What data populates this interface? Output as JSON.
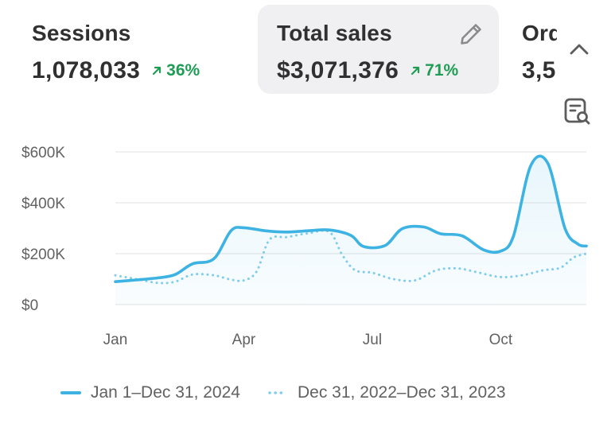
{
  "metrics": [
    {
      "label": "Sessions",
      "value": "1,078,033",
      "delta": "36%"
    },
    {
      "label": "Total sales",
      "value": "$3,071,376",
      "delta": "71%"
    },
    {
      "label": "Orders",
      "value": "3,5"
    }
  ],
  "icons": {
    "edit": "pencil-icon",
    "collapse": "chevron-up-icon",
    "chart_search": "chart-search-icon",
    "delta": "arrow-up-right-icon"
  },
  "colors": {
    "primary_series": "#3db3e3",
    "comparison_series": "#7fcdec",
    "positive_delta": "#1f9d55",
    "card_selected_bg": "#f0eff1",
    "gridline": "#ebebeb",
    "axis_text": "#616161"
  },
  "chart_data": {
    "type": "line",
    "title": "Total sales",
    "xlabel": "",
    "ylabel": "",
    "ylim": [
      0,
      600000
    ],
    "y_ticks": [
      {
        "value": 0,
        "label": "$0"
      },
      {
        "value": 200000,
        "label": "$200K"
      },
      {
        "value": 400000,
        "label": "$400K"
      },
      {
        "value": 600000,
        "label": "$600K"
      }
    ],
    "x_range": [
      0,
      11
    ],
    "x_ticks": [
      {
        "value": 0,
        "label": "Jan"
      },
      {
        "value": 3,
        "label": "Apr"
      },
      {
        "value": 6,
        "label": "Jul"
      },
      {
        "value": 9,
        "label": "Oct"
      }
    ],
    "series": [
      {
        "name": "Jan 1–Dec 31, 2024",
        "style": "solid",
        "points": [
          [
            0,
            90000
          ],
          [
            0.5,
            97000
          ],
          [
            1,
            105000
          ],
          [
            1.4,
            118000
          ],
          [
            1.8,
            160000
          ],
          [
            2.3,
            180000
          ],
          [
            2.7,
            290000
          ],
          [
            3,
            302000
          ],
          [
            3.5,
            290000
          ],
          [
            4,
            285000
          ],
          [
            4.5,
            290000
          ],
          [
            5,
            293000
          ],
          [
            5.5,
            272000
          ],
          [
            5.8,
            228000
          ],
          [
            6.3,
            232000
          ],
          [
            6.7,
            298000
          ],
          [
            7.2,
            305000
          ],
          [
            7.6,
            278000
          ],
          [
            8.1,
            270000
          ],
          [
            8.6,
            215000
          ],
          [
            9,
            210000
          ],
          [
            9.3,
            270000
          ],
          [
            9.7,
            545000
          ],
          [
            10.1,
            555000
          ],
          [
            10.5,
            300000
          ],
          [
            10.8,
            238000
          ],
          [
            11,
            230000
          ]
        ]
      },
      {
        "name": "Dec 31, 2022–Dec 31, 2023",
        "style": "dotted",
        "points": [
          [
            0,
            115000
          ],
          [
            0.5,
            100000
          ],
          [
            1,
            85000
          ],
          [
            1.4,
            90000
          ],
          [
            1.8,
            118000
          ],
          [
            2.3,
            115000
          ],
          [
            2.7,
            98000
          ],
          [
            3,
            95000
          ],
          [
            3.3,
            130000
          ],
          [
            3.6,
            255000
          ],
          [
            4,
            265000
          ],
          [
            4.5,
            280000
          ],
          [
            5,
            285000
          ],
          [
            5.3,
            195000
          ],
          [
            5.6,
            135000
          ],
          [
            6,
            125000
          ],
          [
            6.5,
            100000
          ],
          [
            7,
            95000
          ],
          [
            7.5,
            135000
          ],
          [
            8,
            142000
          ],
          [
            8.5,
            125000
          ],
          [
            9,
            108000
          ],
          [
            9.5,
            115000
          ],
          [
            10,
            135000
          ],
          [
            10.4,
            145000
          ],
          [
            10.7,
            185000
          ],
          [
            11,
            200000
          ]
        ]
      }
    ],
    "legend": "bottom-left"
  }
}
